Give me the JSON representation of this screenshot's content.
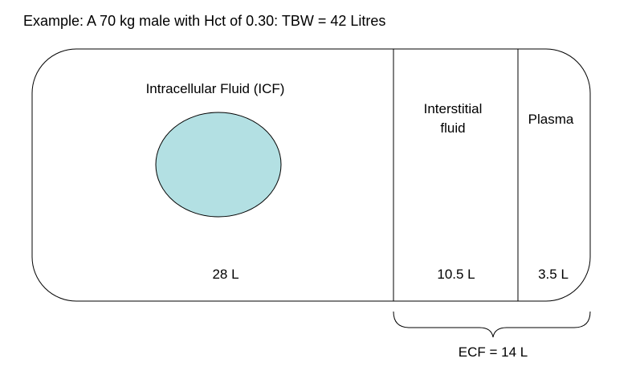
{
  "heading": "Example:  A 70 kg male with Hct of 0.30:  TBW = 42 Litres",
  "compartments": {
    "icf": {
      "label": "Intracellular Fluid (ICF)",
      "volume": "28 L"
    },
    "interstitial": {
      "label_line1": "Interstitial",
      "label_line2": "fluid",
      "volume": "10.5 L"
    },
    "plasma": {
      "label": "Plasma",
      "volume": "3.5 L"
    }
  },
  "ecf_total": "ECF = 14 L",
  "colors": {
    "cell_fill": "#b3e0e3",
    "outline": "#000000",
    "background": "#ffffff"
  }
}
